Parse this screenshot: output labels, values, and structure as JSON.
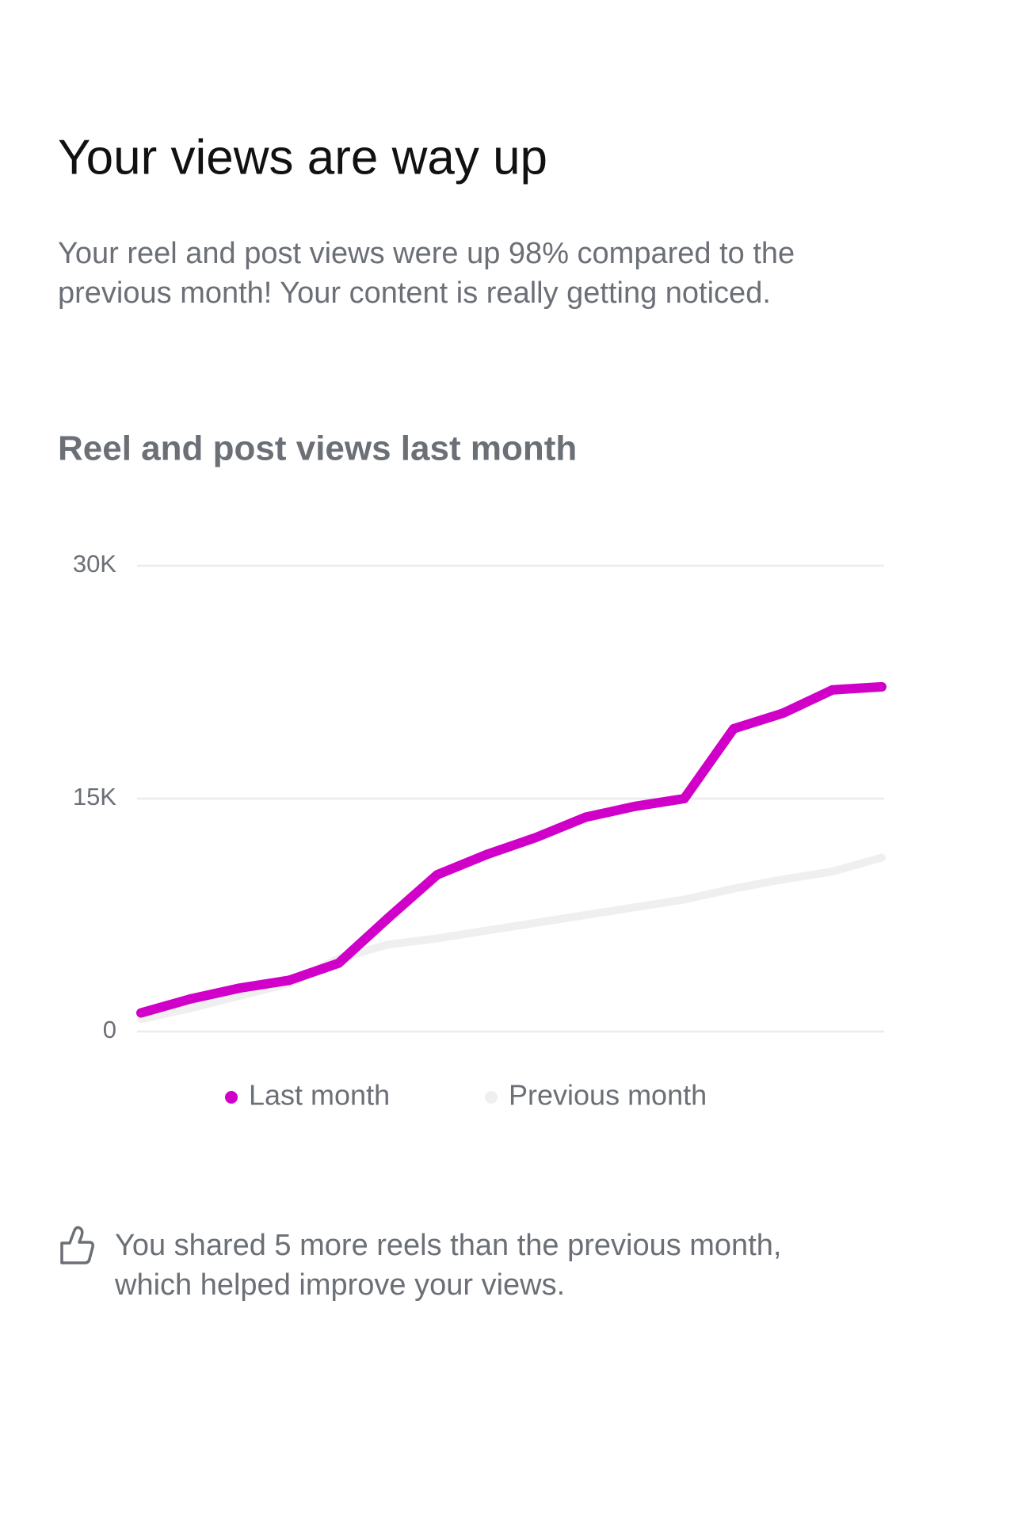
{
  "chart_data": {
    "type": "line",
    "title": "Your views are way up",
    "subtitle": [
      "Your reel and post views were up 98% compared to the",
      "previous month! Your content is really getting noticed."
    ],
    "chart_title": "Reel and post views last month",
    "categories": [
      null,
      null,
      null,
      null,
      null,
      null,
      null,
      null,
      null,
      null,
      null,
      null,
      null,
      null,
      null,
      null
    ],
    "series": [
      {
        "name": "Last month",
        "color": "#d100c9",
        "values": [
          1200,
          2100,
          2800,
          3300,
          4400,
          7300,
          10100,
          11400,
          12500,
          13800,
          14500,
          15000,
          19500,
          20500,
          22000,
          22200
        ]
      },
      {
        "name": "Previous month",
        "color": "#efefef",
        "values": [
          800,
          1500,
          2300,
          3100,
          4700,
          5600,
          6000,
          6500,
          7000,
          7500,
          8000,
          8500,
          9200,
          9800,
          10300,
          11200
        ]
      }
    ],
    "ylim": [
      0,
      30000
    ],
    "yticks": [
      {
        "value": 0,
        "label": "0"
      },
      {
        "value": 15000,
        "label": "15K"
      },
      {
        "value": 30000,
        "label": "30K"
      }
    ],
    "grid": true,
    "legend": "bottom",
    "note": [
      "You shared 5 more reels than the previous month,",
      "which helped improve your views."
    ]
  }
}
